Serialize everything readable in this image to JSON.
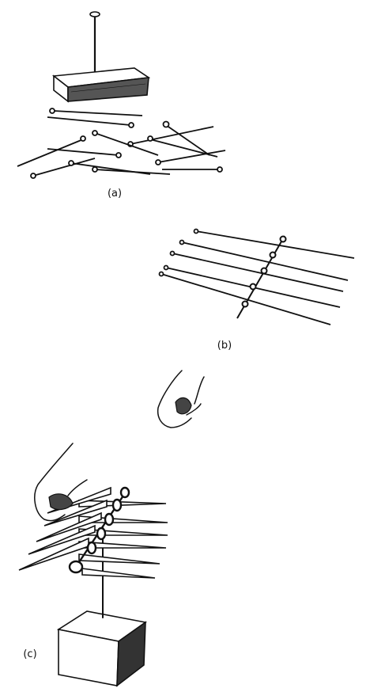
{
  "panels": [
    {
      "id": "a",
      "label": "(a)"
    },
    {
      "id": "b",
      "label": "(b)"
    },
    {
      "id": "c",
      "label": "(c)"
    }
  ],
  "colors": {
    "ink": "#111111",
    "paper": "#ffffff"
  }
}
